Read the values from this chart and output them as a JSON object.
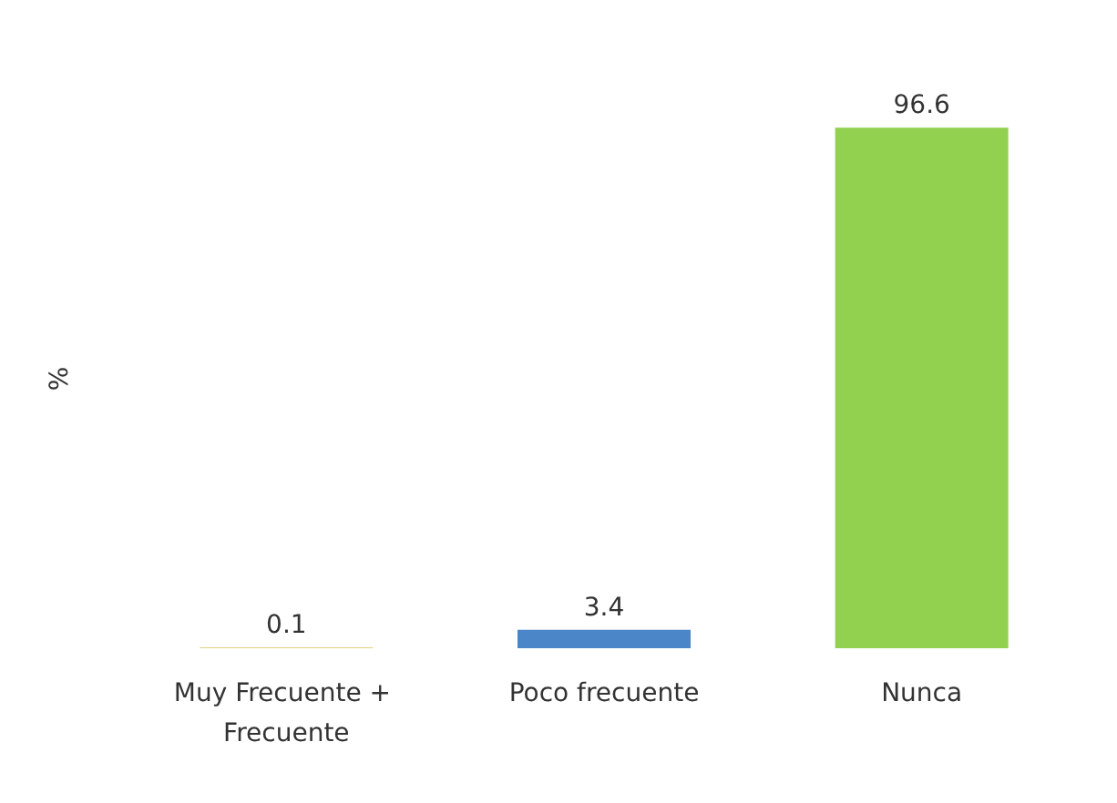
{
  "chart_data": {
    "type": "bar",
    "ylabel": "%",
    "categories": [
      "Muy Frecuente + Frecuente",
      "Poco frecuente",
      "Nunca"
    ],
    "values": [
      0.1,
      3.4,
      96.6
    ],
    "colors": [
      "#c9a000",
      "#4a86c8",
      "#92d050"
    ],
    "data_labels": true
  }
}
